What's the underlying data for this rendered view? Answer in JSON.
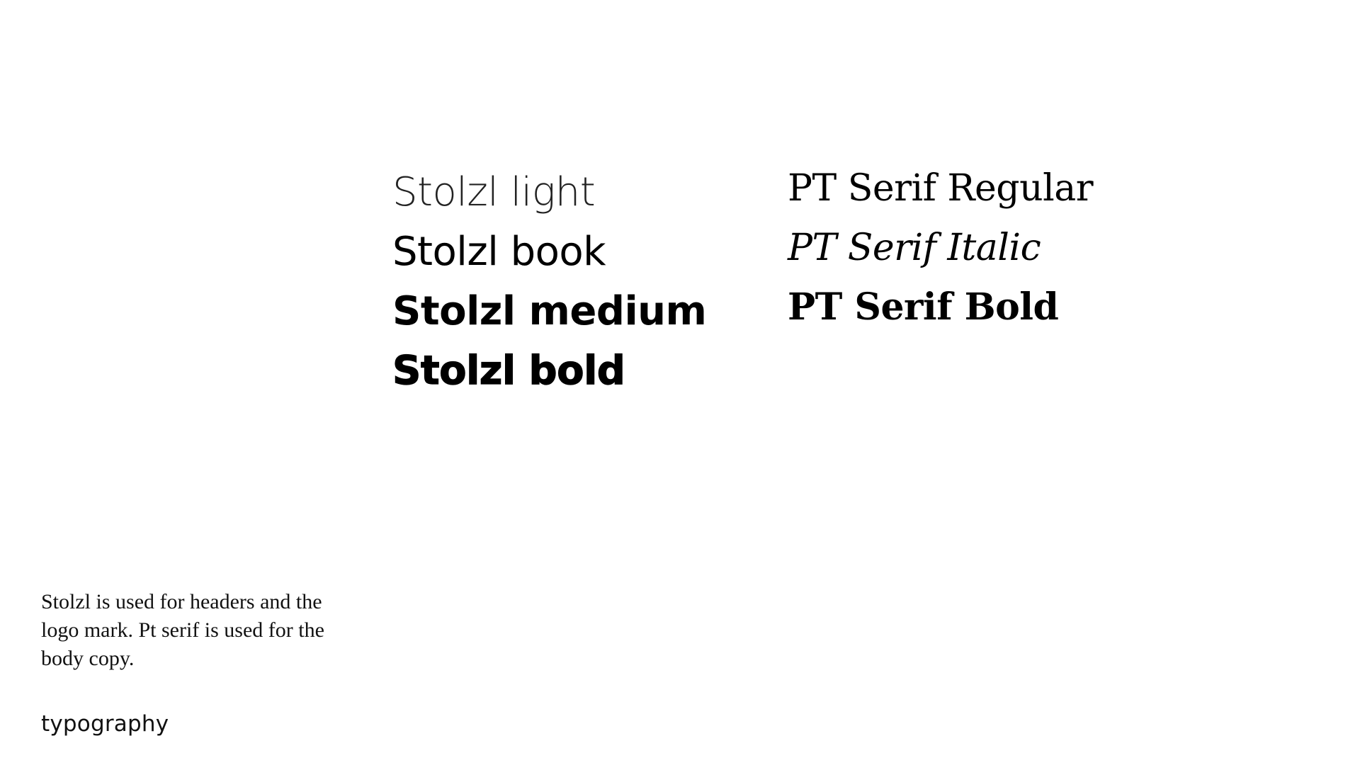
{
  "sans_samples": {
    "light": "Stolzl light",
    "book": "Stolzl book",
    "medium": "Stolzl medium",
    "bold": "Stolzl bold"
  },
  "serif_samples": {
    "regular": "PT Serif Regular",
    "italic": "PT Serif Italic",
    "bold": "PT Serif Bold"
  },
  "description": "Stolzl is used for headers and the logo mark. Pt serif is used for the body copy.",
  "section_label": "typography"
}
